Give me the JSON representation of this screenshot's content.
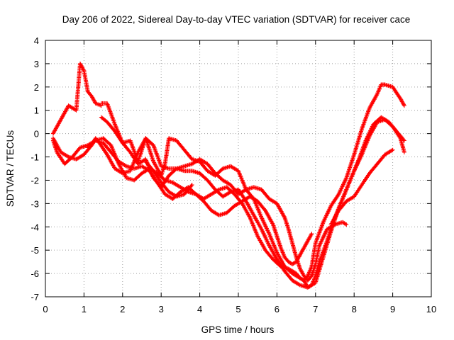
{
  "chart_data": {
    "type": "scatter",
    "title": "Day 206 of 2022, Sidereal Day-to-day VTEC variation (SDTVAR) for receiver cace",
    "xlabel": "GPS time / hours",
    "ylabel": "SDTVAR / TECUs",
    "xlim": [
      0,
      10
    ],
    "ylim": [
      -7,
      4
    ],
    "xticks": [
      "0",
      "1",
      "2",
      "3",
      "4",
      "5",
      "6",
      "7",
      "8",
      "9",
      "10"
    ],
    "yticks": [
      "4",
      "3",
      "2",
      "1",
      "0",
      "-1",
      "-2",
      "-3",
      "-4",
      "-5",
      "-6",
      "-7"
    ],
    "grid": true,
    "marker": "plus",
    "series": [
      {
        "color": "#ff0000",
        "x": [
          0.2,
          0.3,
          0.4,
          0.5,
          0.6,
          0.7,
          0.8,
          0.9,
          1.0,
          1.1,
          1.2,
          1.3,
          1.45
        ],
        "y": [
          0.0,
          0.3,
          0.6,
          0.9,
          1.2,
          1.1,
          1.0,
          3.0,
          2.7,
          1.8,
          1.6,
          1.3,
          1.2
        ]
      },
      {
        "color": "#ff0000",
        "x": [
          1.45,
          1.6,
          1.8,
          2.0,
          2.2,
          2.4,
          2.5,
          2.6,
          2.8,
          3.0,
          3.1,
          3.2,
          3.4,
          3.6,
          3.8,
          4.0,
          4.2,
          4.4,
          4.6,
          4.8,
          5.0,
          5.2,
          5.4,
          5.6,
          5.8,
          6.0,
          6.2,
          6.4,
          6.6,
          6.7,
          6.8,
          6.9,
          7.0,
          7.2,
          7.4,
          7.6,
          7.8,
          8.0,
          8.2,
          8.4,
          8.6,
          8.7,
          8.8,
          9.0,
          9.2,
          9.3
        ],
        "y": [
          1.3,
          1.3,
          0.4,
          -0.4,
          -0.3,
          -1.2,
          -0.7,
          -0.2,
          -1.2,
          -1.8,
          -1.3,
          -0.2,
          -0.3,
          -0.7,
          -1.1,
          -1.2,
          -1.6,
          -1.8,
          -1.5,
          -1.4,
          -1.6,
          -2.4,
          -2.8,
          -3.6,
          -4.3,
          -5.1,
          -5.7,
          -6.0,
          -6.2,
          -6.3,
          -6.1,
          -5.7,
          -4.7,
          -3.8,
          -3.1,
          -2.6,
          -1.9,
          -0.9,
          0.2,
          1.1,
          1.7,
          2.1,
          2.1,
          2.0,
          1.5,
          1.2
        ]
      },
      {
        "color": "#ff0000",
        "x": [
          0.2,
          0.3,
          0.5,
          0.7,
          0.9,
          1.1,
          1.3,
          1.5,
          1.7,
          1.9,
          2.1,
          2.3,
          2.5,
          2.7,
          2.9,
          3.1,
          3.3,
          3.5,
          3.7,
          3.9,
          4.1,
          4.3,
          4.5,
          4.7,
          4.9,
          5.1,
          5.3,
          5.5,
          5.7,
          5.9,
          6.1,
          6.3,
          6.5,
          6.6,
          6.7,
          6.8,
          6.9,
          7.0,
          7.1,
          7.3,
          7.5,
          7.7,
          7.9,
          8.1,
          8.3,
          8.5,
          8.7,
          8.9,
          9.1,
          9.3
        ],
        "y": [
          -0.3,
          -0.8,
          -1.3,
          -1.0,
          -0.6,
          -0.5,
          -0.3,
          -0.2,
          -0.5,
          -1.3,
          -1.9,
          -2.0,
          -1.7,
          -1.5,
          -1.7,
          -2.0,
          -2.1,
          -2.3,
          -2.5,
          -2.6,
          -2.8,
          -2.6,
          -2.4,
          -2.3,
          -2.6,
          -3.0,
          -3.6,
          -4.4,
          -5.0,
          -5.4,
          -5.7,
          -5.8,
          -6.0,
          -6.2,
          -6.3,
          -6.6,
          -6.5,
          -6.1,
          -5.5,
          -4.6,
          -3.6,
          -2.8,
          -2.0,
          -1.2,
          -0.3,
          0.4,
          0.7,
          0.5,
          0.1,
          -0.3
        ]
      },
      {
        "color": "#ff0000",
        "x": [
          0.2,
          0.4,
          0.6,
          0.8,
          1.0,
          1.2,
          1.3,
          1.4,
          1.6,
          1.8,
          2.0,
          2.2,
          2.4,
          2.6,
          2.8,
          3.0,
          3.2,
          3.4,
          3.6,
          3.8,
          4.0,
          4.2,
          4.4,
          4.6,
          4.8,
          5.0,
          5.2,
          5.4,
          5.6,
          5.8,
          6.0,
          6.2,
          6.4,
          6.6,
          6.8,
          7.0,
          7.2,
          7.4,
          7.6,
          7.8,
          8.0,
          8.2,
          8.4,
          8.6,
          8.8,
          9.0,
          9.2,
          9.3
        ],
        "y": [
          -0.2,
          -0.8,
          -1.0,
          -1.1,
          -0.9,
          -0.5,
          -0.2,
          -0.4,
          -0.9,
          -1.5,
          -1.7,
          -1.6,
          -0.8,
          -0.2,
          -0.5,
          -1.4,
          -1.5,
          -1.5,
          -1.6,
          -1.6,
          -1.7,
          -2.0,
          -2.4,
          -2.7,
          -2.5,
          -2.4,
          -2.9,
          -3.5,
          -4.1,
          -4.8,
          -5.4,
          -5.9,
          -6.3,
          -6.5,
          -6.6,
          -6.4,
          -5.3,
          -4.2,
          -3.2,
          -2.4,
          -1.6,
          -0.9,
          -0.1,
          0.5,
          0.6,
          0.3,
          -0.2,
          -0.8
        ]
      },
      {
        "color": "#ff0000",
        "x": [
          1.45,
          1.6,
          1.8,
          2.0,
          2.2,
          2.4,
          2.6,
          2.8,
          3.0,
          3.2,
          3.4,
          3.6,
          3.8,
          4.0,
          4.2,
          4.4,
          4.6,
          4.8,
          5.0,
          5.2,
          5.4,
          5.6,
          5.8,
          6.0,
          6.1,
          6.2,
          6.3,
          6.4,
          6.5,
          6.6,
          6.7,
          6.8,
          6.9,
          7.0,
          7.1,
          7.3,
          7.5,
          7.7,
          7.8
        ],
        "y": [
          0.7,
          0.5,
          0.1,
          -0.4,
          -0.8,
          -1.3,
          -1.1,
          -1.9,
          -2.3,
          -1.8,
          -1.5,
          -1.4,
          -1.3,
          -1.1,
          -1.3,
          -1.7,
          -2.0,
          -2.2,
          -2.6,
          -2.4,
          -2.3,
          -2.4,
          -2.8,
          -3.0,
          -3.3,
          -3.6,
          -4.1,
          -4.7,
          -5.3,
          -5.8,
          -6.1,
          -6.3,
          -6.1,
          -5.6,
          -4.8,
          -4.1,
          -3.9,
          -3.8,
          -3.9
        ]
      },
      {
        "color": "#ff0000",
        "x": [
          1.1,
          1.3,
          1.5,
          1.7,
          1.9,
          2.1,
          2.3,
          2.5,
          2.7,
          2.9,
          3.1,
          3.3,
          3.5,
          3.7,
          3.9,
          4.1,
          4.3,
          4.5,
          4.7,
          4.9,
          5.1,
          5.3,
          5.5,
          5.7,
          5.9,
          6.0,
          6.1,
          6.2,
          6.3,
          6.4,
          6.5,
          6.6,
          6.7,
          6.8,
          6.9
        ],
        "y": [
          -0.6,
          -0.3,
          -0.4,
          -0.8,
          -1.2,
          -1.4,
          -1.5,
          -1.4,
          -1.6,
          -2.1,
          -2.6,
          -2.8,
          -2.5,
          -2.3,
          -2.6,
          -2.9,
          -3.3,
          -3.5,
          -3.4,
          -3.1,
          -2.9,
          -2.7,
          -2.9,
          -3.3,
          -3.9,
          -4.4,
          -4.9,
          -5.3,
          -5.5,
          -5.6,
          -5.5,
          -5.2,
          -4.9,
          -4.6,
          -4.3
        ]
      },
      {
        "color": "#ff0000",
        "x": [
          2.6,
          2.8,
          3.0,
          3.2,
          3.4,
          3.6,
          3.8
        ],
        "y": [
          -1.2,
          -1.6,
          -2.1,
          -2.5,
          -2.7,
          -2.6,
          -2.2
        ]
      },
      {
        "color": "#ff0000",
        "x": [
          7.4,
          7.6,
          7.8,
          8.0,
          8.2,
          8.4,
          8.6,
          8.8,
          9.0
        ],
        "y": [
          -3.9,
          -3.3,
          -2.9,
          -2.7,
          -2.2,
          -1.7,
          -1.3,
          -0.9,
          -0.7
        ]
      }
    ]
  }
}
